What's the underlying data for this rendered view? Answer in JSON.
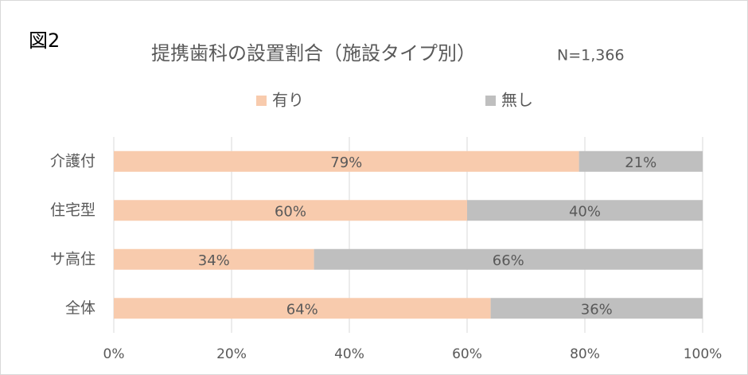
{
  "chart_data": {
    "type": "stacked_barh",
    "figure_label": "図2",
    "title": "提携歯科の設置割合（施設タイプ別）",
    "subtitle": "N=1,366",
    "categories": [
      "介護付",
      "住宅型",
      "サ高住",
      "全体"
    ],
    "series": [
      {
        "name": "有り",
        "color": "#f8cbad",
        "values": [
          79,
          60,
          34,
          64
        ],
        "value_labels": [
          "79%",
          "60%",
          "34%",
          "64%"
        ]
      },
      {
        "name": "無し",
        "color": "#bfbfbf",
        "values": [
          21,
          40,
          66,
          36
        ],
        "value_labels": [
          "21%",
          "40%",
          "66%",
          "36%"
        ]
      }
    ],
    "xlim": [
      0,
      100
    ],
    "xticks": [
      {
        "value": 0,
        "label": "0%"
      },
      {
        "value": 20,
        "label": "20%"
      },
      {
        "value": 40,
        "label": "40%"
      },
      {
        "value": 60,
        "label": "60%"
      },
      {
        "value": 80,
        "label": "80%"
      },
      {
        "value": 100,
        "label": "100%"
      }
    ],
    "grid": true,
    "legend": "top"
  }
}
